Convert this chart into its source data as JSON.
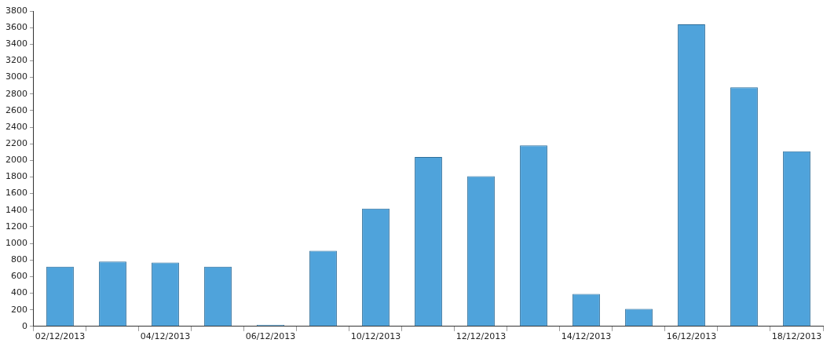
{
  "chart_data": {
    "type": "bar",
    "categories": [
      "02/12/2013",
      null,
      "04/12/2013",
      null,
      "06/12/2013",
      null,
      "10/12/2013",
      null,
      "12/12/2013",
      null,
      "14/12/2013",
      null,
      "16/12/2013",
      null,
      "18/12/2013"
    ],
    "values": [
      720,
      780,
      770,
      720,
      20,
      910,
      1420,
      2040,
      1810,
      2180,
      390,
      210,
      3640,
      2880,
      2110
    ],
    "color": "#4fa3db",
    "ylim": [
      0,
      3800
    ],
    "yticks": [
      0,
      200,
      400,
      600,
      800,
      1000,
      1200,
      1400,
      1600,
      1800,
      2000,
      2200,
      2400,
      2600,
      2800,
      3000,
      3200,
      3400,
      3600,
      3800
    ],
    "grid": false,
    "legend": false
  }
}
